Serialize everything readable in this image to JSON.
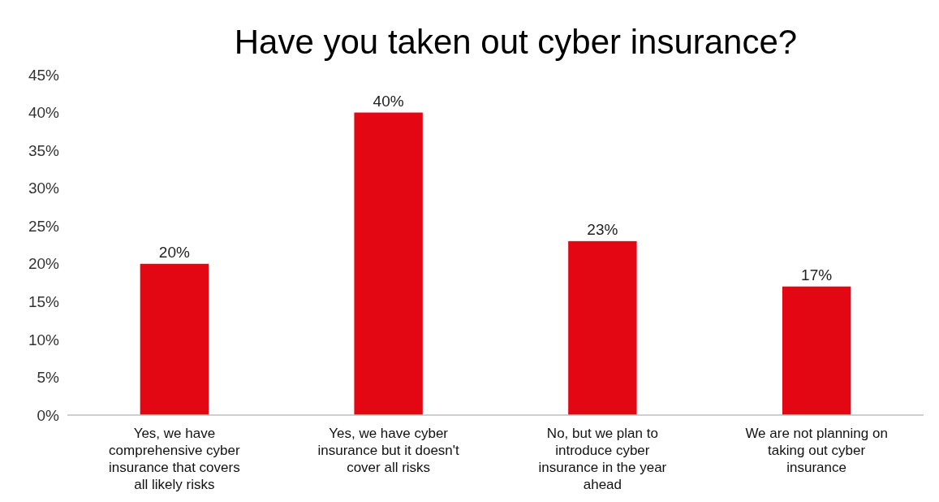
{
  "chart_data": {
    "type": "bar",
    "title": "Have you taken out cyber insurance?",
    "categories": [
      "Yes, we have comprehensive cyber insurance that covers all likely risks",
      "Yes, we have cyber insurance but it doesn't cover all risks",
      "No, but we plan to introduce cyber insurance in the year ahead",
      "We are not planning on taking out cyber insurance"
    ],
    "values": [
      20,
      40,
      23,
      17
    ],
    "value_labels": [
      "20%",
      "40%",
      "23%",
      "17%"
    ],
    "color": "#e30613",
    "ylim": [
      0,
      45
    ],
    "yticks": [
      {
        "value": 0,
        "label": "0%"
      },
      {
        "value": 5,
        "label": "5%"
      },
      {
        "value": 10,
        "label": "10%"
      },
      {
        "value": 15,
        "label": "15%"
      },
      {
        "value": 20,
        "label": "20%"
      },
      {
        "value": 25,
        "label": "25%"
      },
      {
        "value": 30,
        "label": "30%"
      },
      {
        "value": 35,
        "label": "35%"
      },
      {
        "value": 40,
        "label": "40%"
      },
      {
        "value": 45,
        "label": "45%"
      }
    ],
    "grid": false
  }
}
